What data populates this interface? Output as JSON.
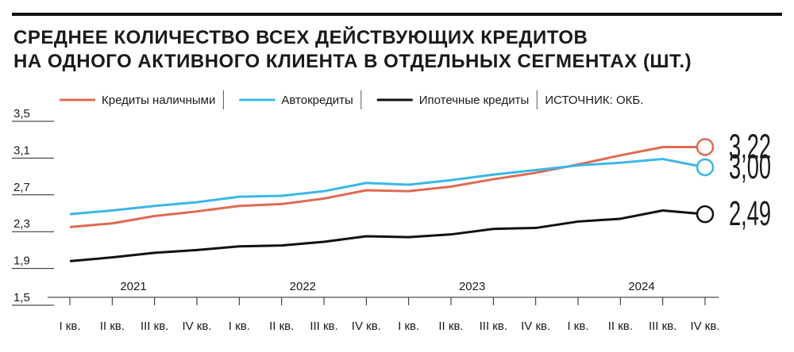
{
  "chart_data": {
    "type": "line",
    "title": [
      "СРЕДНЕЕ КОЛИЧЕСТВО ВСЕХ ДЕЙСТВУЮЩИХ КРЕДИТОВ",
      "НА ОДНОГО АКТИВНОГО КЛИЕНТА В ОТДЕЛЬНЫХ СЕГМЕНТАХ (ШТ.)"
    ],
    "source": "ИСТОЧНИК: ОКБ.",
    "categories": [
      "I кв.",
      "II кв.",
      "III кв.",
      "IV кв.",
      "I кв.",
      "II кв.",
      "III кв.",
      "IV кв.",
      "I кв.",
      "II кв.",
      "III кв.",
      "IV кв.",
      "I кв.",
      "II кв.",
      "III кв.",
      "IV кв."
    ],
    "years": [
      "2021",
      "2022",
      "2023",
      "2024"
    ],
    "ylim": [
      1.5,
      3.5
    ],
    "yticks": [
      {
        "value": 1.5,
        "label": "1,5"
      },
      {
        "value": 1.9,
        "label": "1,9"
      },
      {
        "value": 2.3,
        "label": "2,3"
      },
      {
        "value": 2.7,
        "label": "2,7"
      },
      {
        "value": 3.1,
        "label": "3,1"
      },
      {
        "value": 3.5,
        "label": "3,5"
      }
    ],
    "series": [
      {
        "name": "Кредиты наличными",
        "color": "#e06a50",
        "values": [
          2.35,
          2.39,
          2.47,
          2.52,
          2.58,
          2.6,
          2.66,
          2.75,
          2.74,
          2.79,
          2.87,
          2.94,
          3.03,
          3.13,
          3.22,
          3.22
        ],
        "value_labels": [
          null,
          null,
          null,
          null,
          null,
          null,
          null,
          null,
          null,
          null,
          null,
          null,
          null,
          null,
          null,
          "3,22"
        ]
      },
      {
        "name": "Автокредиты",
        "color": "#3ab8e6",
        "values": [
          2.49,
          2.53,
          2.58,
          2.62,
          2.68,
          2.69,
          2.74,
          2.83,
          2.81,
          2.86,
          2.92,
          2.97,
          3.02,
          3.05,
          3.09,
          3.0
        ],
        "value_labels": [
          null,
          null,
          null,
          null,
          null,
          null,
          null,
          null,
          null,
          null,
          null,
          null,
          null,
          null,
          null,
          "3,00"
        ]
      },
      {
        "name": "Ипотечные кредиты",
        "color": "#111111",
        "values": [
          1.98,
          2.02,
          2.07,
          2.1,
          2.14,
          2.15,
          2.19,
          2.25,
          2.24,
          2.27,
          2.33,
          2.34,
          2.41,
          2.44,
          2.53,
          2.49
        ],
        "value_labels": [
          null,
          null,
          null,
          null,
          null,
          null,
          null,
          null,
          null,
          null,
          null,
          null,
          null,
          null,
          null,
          "2,49"
        ]
      }
    ]
  }
}
